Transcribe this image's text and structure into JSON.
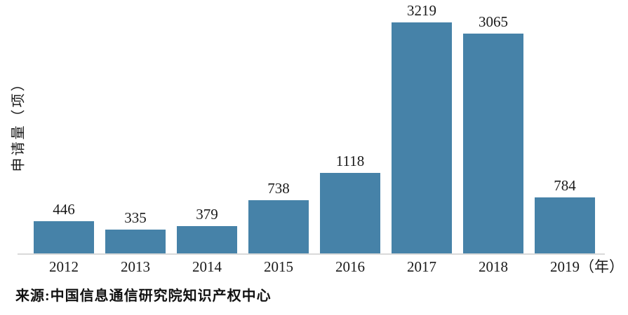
{
  "chart_data": {
    "type": "bar",
    "title": "",
    "categories": [
      "2012",
      "2013",
      "2014",
      "2015",
      "2016",
      "2017",
      "2018",
      "2019"
    ],
    "values": [
      446,
      335,
      379,
      738,
      1118,
      3219,
      3065,
      784
    ],
    "ylabel": "申请量（项）",
    "xlabel": "",
    "xlabel_suffix": "（年）",
    "ylim": [
      0,
      3500
    ],
    "grid": false,
    "legend": "none",
    "bar_color": "#4682A8",
    "axis_color": "#D9D9D9",
    "label_color": "#1A1A1A"
  },
  "source_note": "来源:中国信息通信研究院知识产权中心"
}
